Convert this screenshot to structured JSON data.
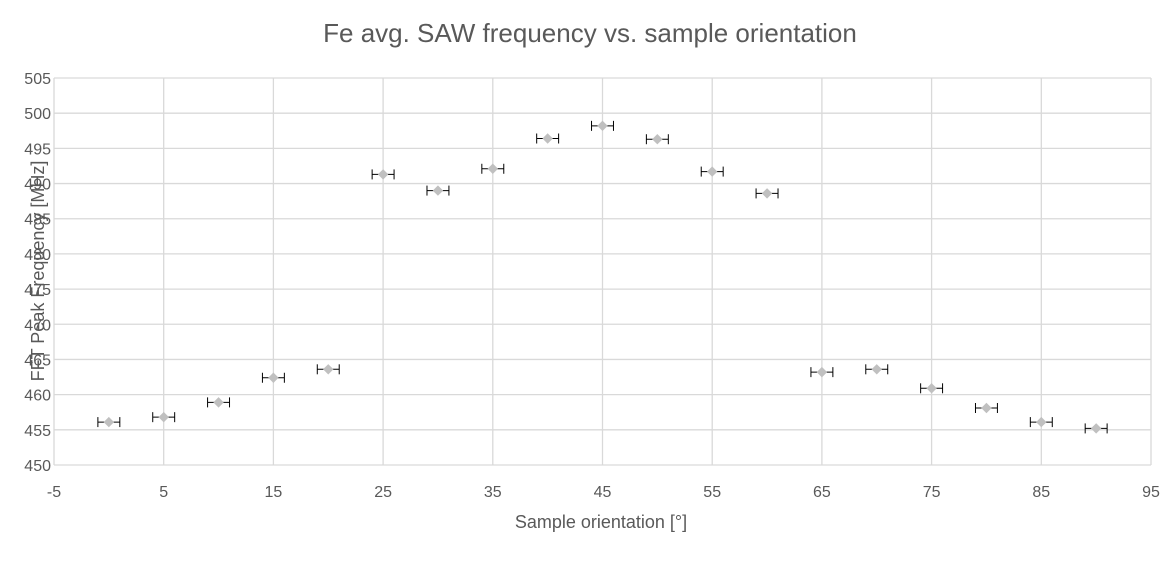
{
  "chart_data": {
    "type": "scatter",
    "title": "Fe avg. SAW frequency vs. sample orientation",
    "xlabel": "Sample orientation [°]",
    "ylabel": "FFT Peak Frequency [MHz]",
    "xlim": [
      -5,
      95
    ],
    "ylim": [
      450,
      505
    ],
    "x_ticks": [
      -5,
      5,
      15,
      25,
      35,
      45,
      55,
      65,
      75,
      85,
      95
    ],
    "y_ticks": [
      450,
      455,
      460,
      465,
      470,
      475,
      480,
      485,
      490,
      495,
      500,
      505
    ],
    "grid": true,
    "legend": "none",
    "marker": "diamond",
    "marker_color": "#c0c0c0",
    "error_bar_color": "#000000",
    "x_error": 1,
    "series": [
      {
        "x": [
          0,
          5,
          10,
          15,
          20,
          25,
          30,
          35,
          40,
          45,
          50,
          55,
          60,
          65,
          70,
          75,
          80,
          85,
          90
        ],
        "y": [
          456.1,
          456.8,
          458.9,
          462.4,
          463.6,
          491.3,
          489.0,
          492.1,
          496.4,
          498.2,
          496.3,
          491.7,
          488.6,
          463.2,
          463.6,
          460.9,
          458.1,
          456.1,
          455.2
        ]
      }
    ]
  }
}
